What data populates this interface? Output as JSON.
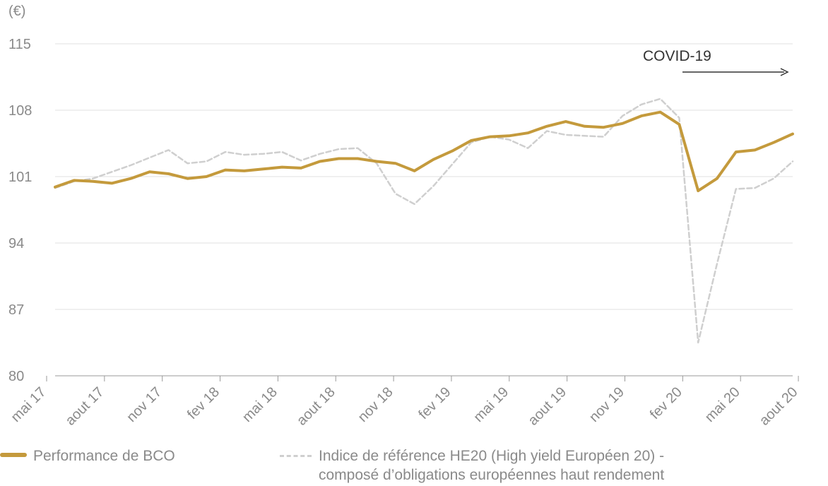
{
  "chart_data": {
    "type": "line",
    "unit_label": "(€)",
    "annotation": "COVID-19",
    "ylim": [
      80,
      115
    ],
    "yticks": [
      80,
      87,
      94,
      101,
      108,
      115
    ],
    "grid": true,
    "legend_placement": "bottom",
    "xticks": [
      "mai 17",
      "aout 17",
      "nov 17",
      "fev 18",
      "mai 18",
      "aout 18",
      "nov 18",
      "fev 19",
      "mai 19",
      "aout 19",
      "nov 19",
      "fev 20",
      "mai 20",
      "aout 20"
    ],
    "x": [
      "2017-05",
      "2017-06",
      "2017-07",
      "2017-08",
      "2017-09",
      "2017-10",
      "2017-11",
      "2017-12",
      "2018-01",
      "2018-02",
      "2018-03",
      "2018-04",
      "2018-05",
      "2018-06",
      "2018-07",
      "2018-08",
      "2018-09",
      "2018-10",
      "2018-11",
      "2018-12",
      "2019-01",
      "2019-02",
      "2019-03",
      "2019-04",
      "2019-05",
      "2019-06",
      "2019-07",
      "2019-08",
      "2019-09",
      "2019-10",
      "2019-11",
      "2019-12",
      "2020-01",
      "2020-02",
      "2020-03",
      "2020-04",
      "2020-05",
      "2020-06",
      "2020-07",
      "2020-08"
    ],
    "series": [
      {
        "name": "Performance de BCO",
        "color": "#c49a3c",
        "values": [
          99.9,
          100.6,
          100.5,
          100.3,
          100.8,
          101.5,
          101.3,
          100.8,
          101.0,
          101.7,
          101.6,
          101.8,
          102.0,
          101.9,
          102.6,
          102.9,
          102.9,
          102.6,
          102.4,
          101.6,
          102.8,
          103.7,
          104.8,
          105.2,
          105.3,
          105.6,
          106.3,
          106.8,
          106.3,
          106.2,
          106.6,
          107.4,
          107.8,
          106.5,
          99.5,
          100.8,
          103.6,
          103.8,
          104.6,
          105.5
        ]
      },
      {
        "name": "Indice de référence HE20 (High yield Européen 20) - composé d’obligations européennes haut rendement",
        "color": "#cfcfcf",
        "values": [
          99.8,
          100.5,
          100.8,
          101.5,
          102.2,
          103.0,
          103.8,
          102.4,
          102.6,
          103.6,
          103.3,
          103.4,
          103.6,
          102.7,
          103.4,
          103.9,
          104.0,
          102.4,
          99.2,
          98.1,
          100.0,
          102.3,
          104.6,
          105.2,
          104.9,
          104.0,
          105.8,
          105.4,
          105.3,
          105.2,
          107.4,
          108.6,
          109.2,
          107.2,
          83.5,
          91.8,
          99.7,
          99.8,
          100.8,
          102.6
        ]
      }
    ]
  },
  "legend": {
    "bco": "Performance de BCO",
    "index_line1": "Indice de référence HE20 (High yield Européen 20) -",
    "index_line2": "composé d’obligations européennes haut rendement"
  }
}
